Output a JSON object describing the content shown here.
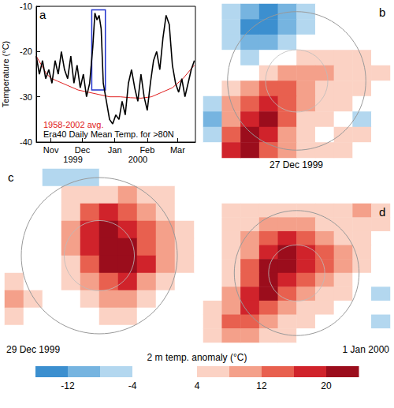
{
  "chart_data": [
    {
      "type": "line",
      "panel": "a",
      "ylabel": "Temperature (°C)",
      "xlim": [
        0,
        152
      ],
      "xticks": [
        {
          "value": 14,
          "label": "Nov"
        },
        {
          "value": 44,
          "label": "Dec"
        },
        {
          "value": 75,
          "label": "Jan"
        },
        {
          "value": 106,
          "label": "Feb"
        },
        {
          "value": 135,
          "label": "Mar"
        }
      ],
      "annotations": [
        {
          "x": 35,
          "text": "1999"
        },
        {
          "x": 97,
          "text": "2000"
        }
      ],
      "ylim": [
        -40,
        -10
      ],
      "yticks": [
        -40,
        -30,
        -20,
        -10
      ],
      "legend": "lower left",
      "highlight": {
        "x": [
          53,
          66
        ],
        "y": [
          -28.5,
          -10.8
        ],
        "color": "#2233cc"
      },
      "series": [
        {
          "name": "1958-2002 avg.",
          "color": "#e02020",
          "line_style": "solid",
          "x": [
            0,
            5,
            10,
            15,
            20,
            30,
            40,
            50,
            60,
            70,
            80,
            90,
            100,
            110,
            120,
            130,
            140,
            151
          ],
          "values": [
            -21,
            -23,
            -25,
            -26,
            -26.5,
            -27.5,
            -28.5,
            -29,
            -29.5,
            -30,
            -30,
            -30.2,
            -30.3,
            -30,
            -29,
            -28,
            -26,
            -23
          ]
        },
        {
          "name": "Era40 Daily Mean Temp. for >80N",
          "color": "#000000",
          "line_style": "solid",
          "x": [
            0,
            3,
            6,
            9,
            12,
            15,
            18,
            21,
            24,
            27,
            30,
            33,
            36,
            39,
            42,
            45,
            48,
            51,
            54,
            56,
            58,
            60,
            62,
            64,
            67,
            70,
            73,
            76,
            79,
            82,
            85,
            88,
            91,
            94,
            97,
            100,
            103,
            106,
            109,
            112,
            115,
            118,
            121,
            124,
            127,
            130,
            133,
            136,
            139,
            142,
            145,
            148,
            151
          ],
          "values": [
            -21,
            -25,
            -22,
            -26,
            -24,
            -27,
            -22,
            -25,
            -20,
            -24,
            -26,
            -21,
            -27,
            -23,
            -28,
            -25,
            -30,
            -27,
            -19,
            -11.5,
            -13,
            -12,
            -15,
            -27,
            -31,
            -35,
            -36,
            -34,
            -35,
            -31,
            -34,
            -27,
            -24,
            -28,
            -31,
            -25,
            -30,
            -33,
            -27,
            -22,
            -20,
            -24,
            -17,
            -12,
            -14,
            -23,
            -27,
            -29,
            -26,
            -30,
            -27,
            -24,
            -22
          ]
        }
      ]
    },
    {
      "type": "heatmap",
      "panel": "b",
      "title": "27 Dec 1999",
      "cells": [
        [
          -2,
          -6,
          -10,
          -14,
          -10,
          -6,
          -2,
          2,
          0,
          2
        ],
        [
          -4,
          -8,
          -14,
          -14,
          -10,
          -6,
          -2,
          2,
          2,
          2
        ],
        [
          -2,
          -6,
          -10,
          -10,
          -6,
          -2,
          2,
          2,
          2,
          0
        ],
        [
          0,
          -2,
          -6,
          -4,
          2,
          6,
          6,
          6,
          6,
          2
        ],
        [
          2,
          0,
          2,
          6,
          10,
          10,
          10,
          6,
          6,
          6
        ],
        [
          0,
          6,
          10,
          14,
          14,
          10,
          6,
          6,
          6,
          2
        ],
        [
          -6,
          10,
          14,
          18,
          14,
          10,
          6,
          6,
          2,
          2
        ],
        [
          -10,
          10,
          18,
          22,
          14,
          6,
          6,
          2,
          -6,
          2
        ],
        [
          -6,
          14,
          22,
          18,
          10,
          6,
          2,
          6,
          6,
          2
        ],
        [
          2,
          18,
          22,
          14,
          10,
          6,
          6,
          6,
          2,
          2
        ]
      ]
    },
    {
      "type": "heatmap",
      "panel": "c",
      "title": "29 Dec 1999",
      "cells": [
        [
          2,
          0,
          -6,
          -6,
          -6,
          -4,
          0,
          2,
          2,
          2
        ],
        [
          0,
          2,
          2,
          6,
          6,
          6,
          10,
          6,
          6,
          2
        ],
        [
          0,
          0,
          2,
          6,
          14,
          18,
          14,
          10,
          6,
          2
        ],
        [
          2,
          0,
          2,
          10,
          18,
          22,
          18,
          14,
          10,
          6
        ],
        [
          0,
          0,
          2,
          10,
          18,
          22,
          22,
          14,
          10,
          6
        ],
        [
          2,
          0,
          2,
          6,
          14,
          22,
          22,
          18,
          10,
          6
        ],
        [
          6,
          2,
          2,
          6,
          10,
          14,
          18,
          10,
          6,
          2
        ],
        [
          10,
          6,
          2,
          2,
          6,
          10,
          10,
          6,
          2,
          0
        ],
        [
          6,
          2,
          0,
          2,
          2,
          6,
          6,
          2,
          2,
          0
        ],
        [
          2,
          0,
          0,
          0,
          2,
          2,
          2,
          2,
          0,
          0
        ]
      ]
    },
    {
      "type": "heatmap",
      "panel": "d",
      "title": "1 Jan 2000",
      "cells": [
        [
          2,
          6,
          6,
          6,
          6,
          6,
          6,
          6,
          10,
          6
        ],
        [
          2,
          6,
          6,
          10,
          10,
          10,
          6,
          6,
          6,
          6
        ],
        [
          2,
          6,
          10,
          14,
          18,
          14,
          10,
          6,
          6,
          2
        ],
        [
          0,
          6,
          10,
          18,
          22,
          18,
          14,
          10,
          6,
          2
        ],
        [
          2,
          6,
          14,
          22,
          22,
          18,
          14,
          10,
          6,
          2
        ],
        [
          2,
          6,
          14,
          22,
          18,
          14,
          10,
          6,
          2,
          2
        ],
        [
          2,
          10,
          18,
          22,
          14,
          10,
          6,
          6,
          2,
          -6
        ],
        [
          6,
          10,
          18,
          14,
          10,
          6,
          6,
          2,
          2,
          2
        ],
        [
          6,
          14,
          14,
          10,
          6,
          6,
          2,
          2,
          0,
          -6
        ],
        [
          6,
          10,
          10,
          6,
          6,
          2,
          2,
          0,
          0,
          2
        ]
      ]
    }
  ],
  "colorbar": {
    "label": "2 m temp. anomaly (°C)",
    "range": [
      -16,
      24
    ],
    "ticks": [
      -12,
      -4,
      4,
      12,
      20
    ],
    "levels": [
      -16,
      -12,
      -8,
      -4,
      0,
      4,
      8,
      12,
      16,
      20,
      24
    ],
    "colors": [
      "#3c8fcf",
      "#76b4e0",
      "#b3d7ef",
      "#ffffff",
      "#ffffff",
      "#fbd2c4",
      "#f4a08a",
      "#e8604f",
      "#d0232b",
      "#9b0d1c"
    ]
  }
}
